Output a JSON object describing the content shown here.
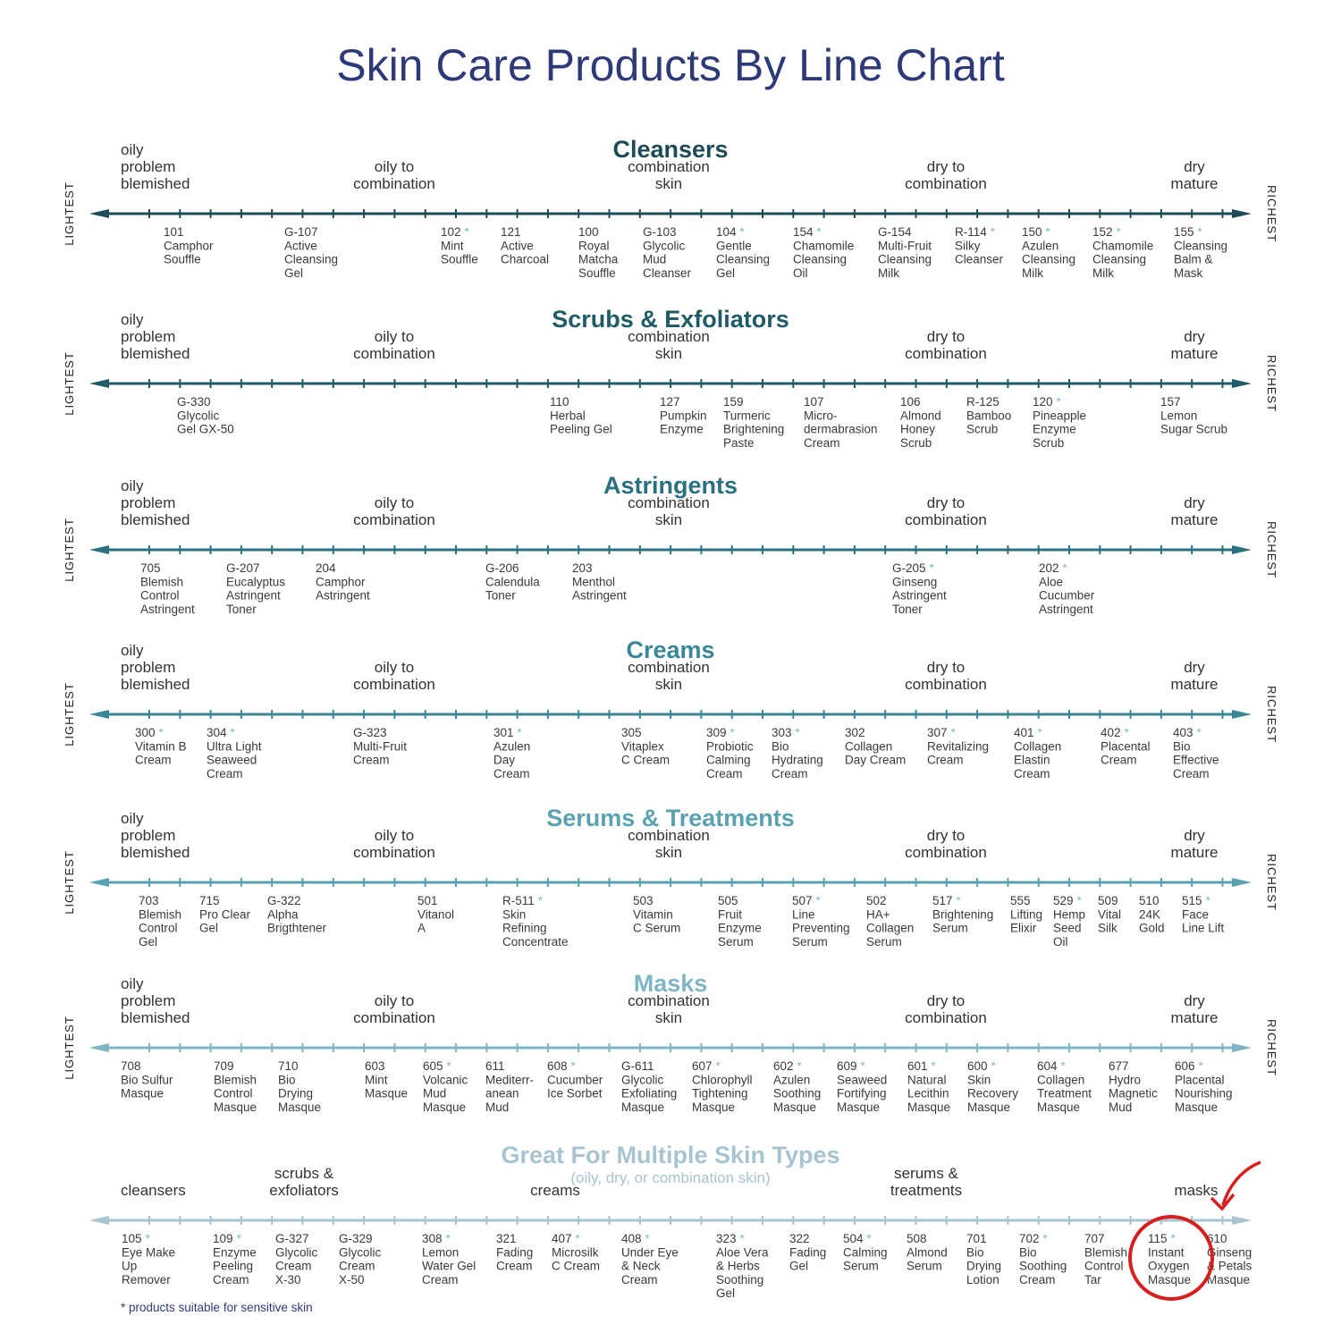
{
  "title": "Skin Care Products By Line Chart",
  "left_label": "LIGHTEST",
  "right_label": "RICHEST",
  "footnote": "* products suitable for sensitive skin",
  "sections": [
    {
      "title": "Cleansers",
      "zones": [
        [
          "oily",
          "problem",
          "blemished"
        ],
        [
          "oily to",
          "combination"
        ],
        [
          "combination",
          "skin"
        ],
        [
          "dry to",
          "combination"
        ],
        [
          "dry",
          "mature"
        ]
      ],
      "products": [
        {
          "code": "101",
          "name": [
            "Camphor",
            "Souffle"
          ]
        },
        {
          "code": "G-107",
          "name": [
            "Active",
            "Cleansing",
            "Gel"
          ]
        },
        {
          "code": "102",
          "mark": "*",
          "name": [
            "Mint",
            "Souffle"
          ]
        },
        {
          "code": "121",
          "name": [
            "Active",
            "Charcoal"
          ]
        },
        {
          "code": "100",
          "name": [
            "Royal",
            "Matcha",
            "Souffle"
          ]
        },
        {
          "code": "G-103",
          "name": [
            "Glycolic",
            "Mud",
            "Cleanser"
          ]
        },
        {
          "code": "104",
          "mark": "*",
          "name": [
            "Gentle",
            "Cleansing",
            "Gel"
          ]
        },
        {
          "code": "154",
          "mark": "*",
          "name": [
            "Chamomile",
            "Cleansing",
            "Oil"
          ]
        },
        {
          "code": "G-154",
          "name": [
            "Multi-Fruit",
            "Cleansing",
            "Milk"
          ]
        },
        {
          "code": "R-114",
          "mark": "*",
          "name": [
            "Silky",
            "Cleanser"
          ]
        },
        {
          "code": "150",
          "mark": "*",
          "name": [
            "Azulen",
            "Cleansing",
            "Milk"
          ]
        },
        {
          "code": "152",
          "mark": "*",
          "name": [
            "Chamomile",
            "Cleansing",
            "Milk"
          ]
        },
        {
          "code": "155",
          "mark": "*",
          "name": [
            "Cleansing",
            "Balm &",
            "Mask"
          ]
        }
      ]
    },
    {
      "title": "Scrubs & Exfoliators",
      "zones": [
        [
          "oily",
          "problem",
          "blemished"
        ],
        [
          "oily to",
          "combination"
        ],
        [
          "combination",
          "skin"
        ],
        [
          "dry to",
          "combination"
        ],
        [
          "dry",
          "mature"
        ]
      ],
      "products": [
        {
          "code": "G-330",
          "name": [
            "Glycolic",
            "Gel GX-50"
          ]
        },
        {
          "code": "110",
          "name": [
            "Herbal",
            "Peeling Gel"
          ]
        },
        {
          "code": "127",
          "name": [
            "Pumpkin",
            "Enzyme"
          ]
        },
        {
          "code": "159",
          "name": [
            "Turmeric",
            "Brightening",
            "Paste"
          ]
        },
        {
          "code": "107",
          "name": [
            "Micro-",
            "dermabrasion",
            "Cream"
          ]
        },
        {
          "code": "106",
          "name": [
            "Almond",
            "Honey",
            "Scrub"
          ]
        },
        {
          "code": "R-125",
          "name": [
            "Bamboo",
            "Scrub"
          ]
        },
        {
          "code": "120",
          "mark": "*",
          "name": [
            "Pineapple",
            "Enzyme",
            "Scrub"
          ]
        },
        {
          "code": "157",
          "name": [
            "Lemon",
            "Sugar Scrub"
          ]
        }
      ]
    },
    {
      "title": "Astringents",
      "zones": [
        [
          "oily",
          "problem",
          "blemished"
        ],
        [
          "oily to",
          "combination"
        ],
        [
          "combination",
          "skin"
        ],
        [
          "dry to",
          "combination"
        ],
        [
          "dry",
          "mature"
        ]
      ],
      "products": [
        {
          "code": "705",
          "name": [
            "Blemish",
            "Control",
            "Astringent"
          ]
        },
        {
          "code": "G-207",
          "name": [
            "Eucalyptus",
            "Astringent",
            "Toner"
          ]
        },
        {
          "code": "204",
          "name": [
            "Camphor",
            "Astringent"
          ]
        },
        {
          "code": "G-206",
          "name": [
            "Calendula",
            "Toner"
          ]
        },
        {
          "code": "203",
          "name": [
            "Menthol",
            "Astringent"
          ]
        },
        {
          "code": "G-205",
          "mark": "*",
          "name": [
            "Ginseng",
            "Astringent",
            "Toner"
          ]
        },
        {
          "code": "202",
          "mark": "*",
          "name": [
            "Aloe",
            "Cucumber",
            "Astringent"
          ]
        }
      ]
    },
    {
      "title": "Creams",
      "zones": [
        [
          "oily",
          "problem",
          "blemished"
        ],
        [
          "oily to",
          "combination"
        ],
        [
          "combination",
          "skin"
        ],
        [
          "dry to",
          "combination"
        ],
        [
          "dry",
          "mature"
        ]
      ],
      "products": [
        {
          "code": "300",
          "mark": "*",
          "name": [
            "Vitamin B",
            "Cream"
          ]
        },
        {
          "code": "304",
          "mark": "*",
          "name": [
            "Ultra Light",
            "Seaweed",
            "Cream"
          ]
        },
        {
          "code": "G-323",
          "name": [
            "Multi-Fruit",
            "Cream"
          ]
        },
        {
          "code": "301",
          "mark": "*",
          "name": [
            "Azulen",
            "Day",
            "Cream"
          ]
        },
        {
          "code": "305",
          "name": [
            "Vitaplex",
            "C Cream"
          ]
        },
        {
          "code": "309",
          "mark": "*",
          "name": [
            "Probiotic",
            "Calming",
            "Cream"
          ]
        },
        {
          "code": "303",
          "mark": "*",
          "name": [
            "Bio",
            "Hydrating",
            "Cream"
          ]
        },
        {
          "code": "302",
          "name": [
            "Collagen",
            "Day Cream"
          ]
        },
        {
          "code": "307",
          "mark": "*",
          "name": [
            "Revitalizing",
            "Cream"
          ]
        },
        {
          "code": "401",
          "mark": "*",
          "name": [
            "Collagen",
            "Elastin",
            "Cream"
          ]
        },
        {
          "code": "402",
          "mark": "*",
          "name": [
            "Placental",
            "Cream"
          ]
        },
        {
          "code": "403",
          "mark": "*",
          "name": [
            "Bio",
            "Effective",
            "Cream"
          ]
        }
      ]
    },
    {
      "title": "Serums & Treatments",
      "zones": [
        [
          "oily",
          "problem",
          "blemished"
        ],
        [
          "oily to",
          "combination"
        ],
        [
          "combination",
          "skin"
        ],
        [
          "dry to",
          "combination"
        ],
        [
          "dry",
          "mature"
        ]
      ],
      "products": [
        {
          "code": "703",
          "name": [
            "Blemish",
            "Control",
            "Gel"
          ]
        },
        {
          "code": "715",
          "name": [
            "Pro Clear",
            "Gel"
          ]
        },
        {
          "code": "G-322",
          "name": [
            "Alpha",
            "Brigthtener"
          ]
        },
        {
          "code": "501",
          "name": [
            "Vitanol",
            "A"
          ]
        },
        {
          "code": "R-511",
          "mark": "*",
          "name": [
            "Skin",
            "Refining",
            "Concentrate"
          ]
        },
        {
          "code": "503",
          "name": [
            "Vitamin",
            "C Serum"
          ]
        },
        {
          "code": "505",
          "name": [
            "Fruit",
            "Enzyme",
            "Serum"
          ]
        },
        {
          "code": "507",
          "mark": "*",
          "name": [
            "Line",
            "Preventing",
            "Serum"
          ]
        },
        {
          "code": "502",
          "name": [
            "HA+",
            "Collagen",
            "Serum"
          ]
        },
        {
          "code": "517",
          "mark": "*",
          "name": [
            "Brightening",
            "Serum"
          ]
        },
        {
          "code": "555",
          "name": [
            "Lifting",
            "Elixir"
          ]
        },
        {
          "code": "529",
          "mark": "*",
          "name": [
            "Hemp",
            "Seed",
            "Oil"
          ]
        },
        {
          "code": "509",
          "name": [
            "Vital",
            "Silk"
          ]
        },
        {
          "code": "510",
          "name": [
            "24K",
            "Gold"
          ]
        },
        {
          "code": "515",
          "mark": "*",
          "name": [
            "Face",
            "Line Lift"
          ]
        }
      ]
    },
    {
      "title": "Masks",
      "zones": [
        [
          "oily",
          "problem",
          "blemished"
        ],
        [
          "oily to",
          "combination"
        ],
        [
          "combination",
          "skin"
        ],
        [
          "dry to",
          "combination"
        ],
        [
          "dry",
          "mature"
        ]
      ],
      "products": [
        {
          "code": "708",
          "name": [
            "Bio Sulfur",
            "Masque"
          ]
        },
        {
          "code": "709",
          "name": [
            "Blemish",
            "Control",
            "Masque"
          ]
        },
        {
          "code": "710",
          "name": [
            "Bio",
            "Drying",
            "Masque"
          ]
        },
        {
          "code": "603",
          "name": [
            "Mint",
            "Masque"
          ]
        },
        {
          "code": "605",
          "mark": "*",
          "name": [
            "Volcanic",
            "Mud",
            "Masque"
          ]
        },
        {
          "code": "611",
          "name": [
            "Mediterr-",
            "anean",
            "Mud"
          ]
        },
        {
          "code": "608",
          "mark": "*",
          "name": [
            "Cucumber",
            "Ice Sorbet"
          ]
        },
        {
          "code": "G-611",
          "name": [
            "Glycolic",
            "Exfoliating",
            "Masque"
          ]
        },
        {
          "code": "607",
          "mark": "*",
          "name": [
            "Chlorophyll",
            "Tightening",
            "Masque"
          ]
        },
        {
          "code": "602",
          "mark": "*",
          "name": [
            "Azulen",
            "Soothing",
            "Masque"
          ]
        },
        {
          "code": "609",
          "mark": "*",
          "name": [
            "Seaweed",
            "Fortifying",
            "Masque"
          ]
        },
        {
          "code": "601",
          "mark": "*",
          "name": [
            "Natural",
            "Lecithin",
            "Masque"
          ]
        },
        {
          "code": "600",
          "mark": "*",
          "name": [
            "Skin",
            "Recovery",
            "Masque"
          ]
        },
        {
          "code": "604",
          "mark": "*",
          "name": [
            "Collagen",
            "Treatment",
            "Masque"
          ]
        },
        {
          "code": "677",
          "name": [
            "Hydro",
            "Magnetic",
            "Mud"
          ]
        },
        {
          "code": "606",
          "mark": "*",
          "name": [
            "Placental",
            "Nourishing",
            "Masque"
          ]
        }
      ]
    },
    {
      "title": "Great For Multiple Skin Types",
      "subtitle": "(oily, dry, or combination skin)",
      "zones": [
        [
          "cleansers"
        ],
        [
          "scrubs &",
          "exfoliators"
        ],
        [
          "creams"
        ],
        [
          "serums &",
          "treatments"
        ],
        [
          "masks"
        ]
      ],
      "products": [
        {
          "code": "105",
          "mark": "*",
          "name": [
            "Eye Make",
            "Up",
            "Remover"
          ]
        },
        {
          "code": "109",
          "mark": "*",
          "name": [
            "Enzyme",
            "Peeling",
            "Cream"
          ]
        },
        {
          "code": "G-327",
          "name": [
            "Glycolic",
            "Cream",
            "X-30"
          ]
        },
        {
          "code": "G-329",
          "name": [
            "Glycolic",
            "Cream",
            "X-50"
          ]
        },
        {
          "code": "308",
          "mark": "*",
          "name": [
            "Lemon",
            "Water Gel",
            "Cream"
          ]
        },
        {
          "code": "321",
          "name": [
            "Fading",
            "Cream"
          ]
        },
        {
          "code": "407",
          "mark": "*",
          "name": [
            "Microsilk",
            "C Cream"
          ]
        },
        {
          "code": "408",
          "mark": "*",
          "name": [
            "Under Eye",
            "& Neck",
            "Cream"
          ]
        },
        {
          "code": "323",
          "mark": "*",
          "name": [
            "Aloe Vera",
            "& Herbs",
            "Soothing",
            "Gel"
          ]
        },
        {
          "code": "322",
          "name": [
            "Fading",
            "Gel"
          ]
        },
        {
          "code": "504",
          "mark": "*",
          "name": [
            "Calming",
            "Serum"
          ]
        },
        {
          "code": "508",
          "name": [
            "Almond",
            "Serum"
          ]
        },
        {
          "code": "701",
          "name": [
            "Bio",
            "Drying",
            "Lotion"
          ]
        },
        {
          "code": "702",
          "mark": "*",
          "name": [
            "Bio",
            "Soothing",
            "Cream"
          ]
        },
        {
          "code": "707",
          "name": [
            "Blemish",
            "Control",
            "Tar"
          ]
        },
        {
          "code": "115",
          "mark": "*",
          "name": [
            "Instant",
            "Oxygen",
            "Masque"
          ]
        },
        {
          "code": "610",
          "name": [
            "Ginseng",
            "& Petals",
            "Masque"
          ]
        }
      ]
    }
  ]
}
